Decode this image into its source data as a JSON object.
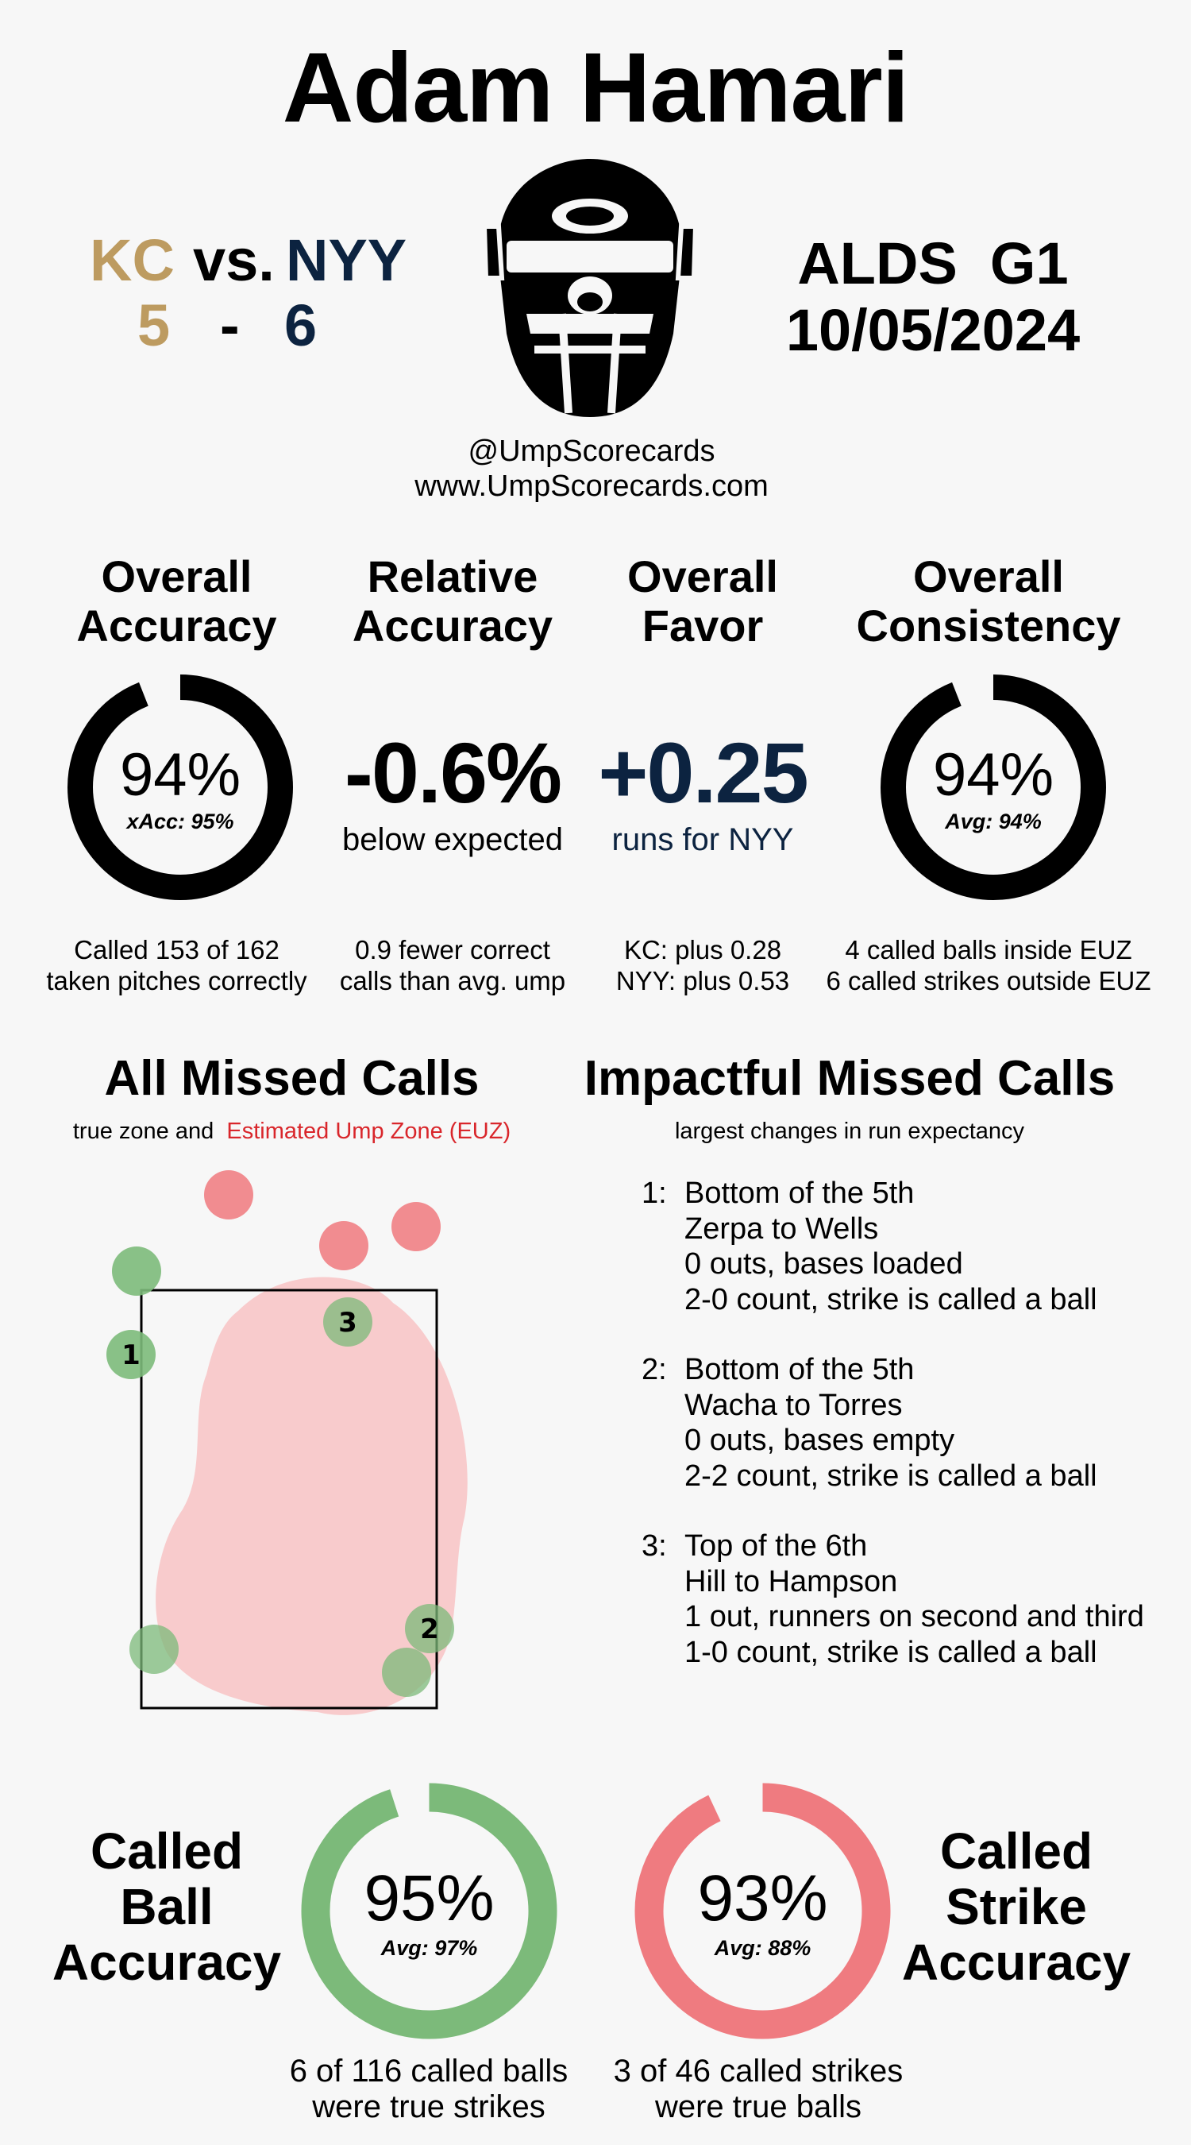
{
  "umpire": "Adam Hamari",
  "matchup": {
    "away_team": "KC",
    "vs": "vs.",
    "home_team": "NYY",
    "away_score": "5",
    "dash": "-",
    "home_score": "6",
    "away_color": "#bd9b60",
    "home_color": "#0c2340"
  },
  "game": {
    "series": "ALDS  G1",
    "date": "10/05/2024"
  },
  "branding": {
    "handle": "@UmpScorecards",
    "site": "www.UmpScorecards.com",
    "logo_icon": "umpire-mask-icon"
  },
  "metrics": {
    "overall_accuracy": {
      "head1": "Overall",
      "head2": "Accuracy",
      "value": "94%",
      "sub": "xAcc: 95%",
      "fill": 0.94,
      "foot1": "Called 153 of 162",
      "foot2": "taken pitches correctly"
    },
    "relative_accuracy": {
      "head1": "Relative",
      "head2": "Accuracy",
      "value": "-0.6%",
      "sub": "below expected",
      "foot1": "0.9 fewer correct",
      "foot2": "calls than avg. ump"
    },
    "overall_favor": {
      "head1": "Overall",
      "head2": "Favor",
      "value": "+0.25",
      "sub": "runs for NYY",
      "foot1": "KC: plus 0.28",
      "foot2": "NYY: plus 0.53"
    },
    "overall_consistency": {
      "head1": "Overall",
      "head2": "Consistency",
      "value": "94%",
      "sub": "Avg: 94%",
      "fill": 0.94,
      "foot1": "4 called balls inside EUZ",
      "foot2": "6 called strikes outside EUZ"
    }
  },
  "missed_calls": {
    "title": "All Missed Calls",
    "subtitle_plain": "true zone and",
    "subtitle_euz": "Estimated Ump Zone (EUZ)",
    "colors": {
      "called_ball_miss": "#7cba7a",
      "called_strike_miss": "#f07f84",
      "euz": "#f7c5c7"
    },
    "labels": [
      "1",
      "2",
      "3"
    ]
  },
  "impactful": {
    "title": "Impactful Missed Calls",
    "subtitle": "largest changes in run expectancy",
    "calls": [
      {
        "num": "1:",
        "lines": [
          "Bottom of the 5th",
          "Zerpa to Wells",
          "0 outs, bases loaded",
          "2-0 count, strike is called a ball"
        ]
      },
      {
        "num": "2:",
        "lines": [
          "Bottom of the 5th",
          "Wacha to Torres",
          "0 outs, bases empty",
          "2-2 count, strike is called a ball"
        ]
      },
      {
        "num": "3:",
        "lines": [
          "Top of the 6th",
          "Hill to Hampson",
          "1 out, runners on second and third",
          "1-0 count, strike is called a ball"
        ]
      }
    ]
  },
  "called_ball": {
    "label": [
      "Called",
      "Ball",
      "Accuracy"
    ],
    "value": "95%",
    "avg": "Avg: 97%",
    "fill": 0.95,
    "color": "#7cba7a",
    "foot1": "6 of 116 called balls",
    "foot2": "were true strikes"
  },
  "called_strike": {
    "label": [
      "Called",
      "Strike",
      "Accuracy"
    ],
    "value": "93%",
    "avg": "Avg: 88%",
    "fill": 0.93,
    "color": "#ef7b80",
    "foot1": "3 of 46 called strikes",
    "foot2": "were true balls"
  }
}
